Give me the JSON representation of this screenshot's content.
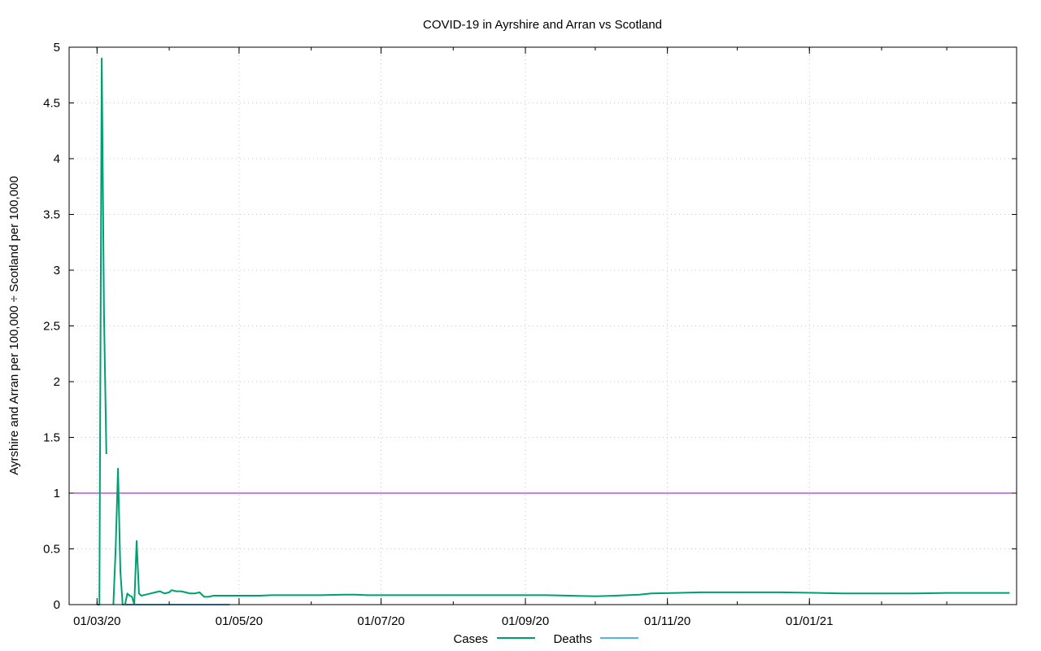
{
  "chart_data": {
    "type": "line",
    "title": "COVID-19 in Ayrshire and Arran vs Scotland",
    "xlabel": "",
    "ylabel": "Ayrshire and Arran per 100,000 ÷ Scotland per 100,000",
    "x_axis": {
      "kind": "date",
      "range": [
        "2020-02-18",
        "2021-03-31"
      ],
      "tick_labels": [
        {
          "date": "2020-03-01",
          "label": "01/03/20"
        },
        {
          "date": "2020-05-01",
          "label": "01/05/20"
        },
        {
          "date": "2020-07-01",
          "label": "01/07/20"
        },
        {
          "date": "2020-09-01",
          "label": "01/09/20"
        },
        {
          "date": "2020-11-01",
          "label": "01/11/20"
        },
        {
          "date": "2021-01-01",
          "label": "01/01/21"
        }
      ]
    },
    "ylim": [
      0,
      5
    ],
    "yticks": [
      "0",
      "0.5",
      "1",
      "1.5",
      "2",
      "2.5",
      "3",
      "3.5",
      "4",
      "4.5",
      "5"
    ],
    "grid": true,
    "legend_position": "bottom",
    "reference_line": {
      "y": 1,
      "color": "#9400d3"
    },
    "series": [
      {
        "name": "Cases",
        "color": "#009e73",
        "segments": [
          [
            [
              "2020-03-01",
              0
            ],
            [
              "2020-03-02",
              0
            ],
            [
              "2020-03-03",
              4.9
            ],
            [
              "2020-03-04",
              2.6
            ],
            [
              "2020-03-05",
              1.35
            ]
          ],
          [
            [
              "2020-03-08",
              0
            ],
            [
              "2020-03-09",
              0.5
            ],
            [
              "2020-03-10",
              1.22
            ],
            [
              "2020-03-11",
              0.3
            ],
            [
              "2020-03-12",
              0
            ],
            [
              "2020-03-13",
              0
            ],
            [
              "2020-03-14",
              0.1
            ],
            [
              "2020-03-15",
              0.08
            ],
            [
              "2020-03-16",
              0.07
            ],
            [
              "2020-03-17",
              0.0
            ],
            [
              "2020-03-18",
              0.57
            ],
            [
              "2020-03-19",
              0.1
            ],
            [
              "2020-03-20",
              0.08
            ],
            [
              "2020-03-22",
              0.09
            ],
            [
              "2020-03-24",
              0.1
            ],
            [
              "2020-03-26",
              0.11
            ],
            [
              "2020-03-28",
              0.12
            ],
            [
              "2020-03-30",
              0.1
            ],
            [
              "2020-04-01",
              0.11
            ],
            [
              "2020-04-02",
              0.13
            ],
            [
              "2020-04-04",
              0.12
            ],
            [
              "2020-04-06",
              0.12
            ],
            [
              "2020-04-08",
              0.11
            ],
            [
              "2020-04-10",
              0.1
            ],
            [
              "2020-04-12",
              0.1
            ],
            [
              "2020-04-14",
              0.11
            ],
            [
              "2020-04-16",
              0.07
            ],
            [
              "2020-04-18",
              0.07
            ],
            [
              "2020-04-20",
              0.08
            ],
            [
              "2020-04-25",
              0.08
            ],
            [
              "2020-05-01",
              0.08
            ],
            [
              "2020-05-10",
              0.08
            ],
            [
              "2020-05-15",
              0.085
            ],
            [
              "2020-05-25",
              0.085
            ],
            [
              "2020-06-05",
              0.085
            ],
            [
              "2020-06-15",
              0.09
            ],
            [
              "2020-06-20",
              0.09
            ],
            [
              "2020-06-25",
              0.085
            ],
            [
              "2020-07-10",
              0.085
            ],
            [
              "2020-08-01",
              0.085
            ],
            [
              "2020-08-20",
              0.085
            ],
            [
              "2020-09-10",
              0.085
            ],
            [
              "2020-09-20",
              0.08
            ],
            [
              "2020-10-01",
              0.075
            ],
            [
              "2020-10-10",
              0.08
            ],
            [
              "2020-10-20",
              0.09
            ],
            [
              "2020-10-25",
              0.1
            ],
            [
              "2020-11-05",
              0.105
            ],
            [
              "2020-11-15",
              0.11
            ],
            [
              "2020-12-01",
              0.11
            ],
            [
              "2020-12-20",
              0.11
            ],
            [
              "2021-01-05",
              0.105
            ],
            [
              "2021-01-15",
              0.1
            ],
            [
              "2021-02-01",
              0.1
            ],
            [
              "2021-02-15",
              0.1
            ],
            [
              "2021-03-01",
              0.105
            ],
            [
              "2021-03-20",
              0.105
            ],
            [
              "2021-03-28",
              0.105
            ]
          ]
        ]
      },
      {
        "name": "Deaths",
        "color": "#56b4e9",
        "segments": [
          [
            [
              "2020-03-12",
              0
            ],
            [
              "2020-04-01",
              0
            ],
            [
              "2020-04-27",
              0
            ]
          ]
        ]
      }
    ]
  }
}
